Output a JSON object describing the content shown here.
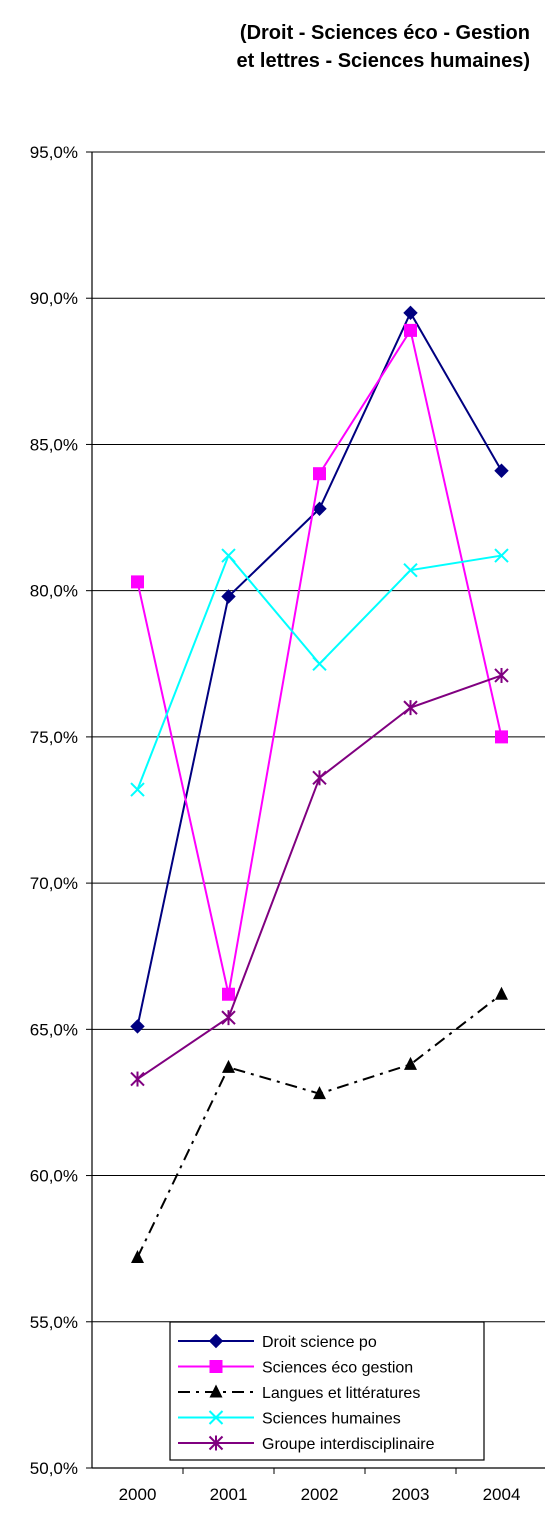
{
  "title_lines": [
    "(Droit - Sciences éco - Gestion",
    "et lettres - Sciences humaines)"
  ],
  "chart_data": {
    "type": "line",
    "categories": [
      "2000",
      "2001",
      "2002",
      "2003",
      "2004"
    ],
    "ylim": [
      0.5,
      0.95
    ],
    "ytick_values": [
      0.5,
      0.55,
      0.6,
      0.65,
      0.7,
      0.75,
      0.8,
      0.85,
      0.9,
      0.95
    ],
    "ytick_labels": [
      "50,0%",
      "55,0%",
      "60,0%",
      "65,0%",
      "70,0%",
      "75,0%",
      "80,0%",
      "85,0%",
      "90,0%",
      "95,0%"
    ],
    "grid": "horizontal",
    "legend_position": "bottom-center (inside plot)",
    "series": [
      {
        "name": "Droit science po",
        "color": "#000080",
        "marker": "diamond",
        "dash": "solid",
        "values": [
          0.651,
          0.798,
          0.828,
          0.895,
          0.841
        ]
      },
      {
        "name": "Sciences éco gestion",
        "color": "#FF00FF",
        "marker": "square",
        "dash": "solid",
        "values": [
          0.803,
          0.662,
          0.84,
          0.889,
          0.75
        ]
      },
      {
        "name": "Langues et littératures",
        "color": "#000000",
        "marker": "triangle",
        "dash": "dashdot",
        "values": [
          0.572,
          0.637,
          0.628,
          0.638,
          0.662
        ]
      },
      {
        "name": "Sciences humaines",
        "color": "#00FFFF",
        "marker": "x",
        "dash": "solid",
        "values": [
          0.732,
          0.812,
          0.775,
          0.807,
          0.812
        ]
      },
      {
        "name": "Groupe interdisciplinaire",
        "color": "#800080",
        "marker": "star",
        "dash": "solid",
        "values": [
          0.633,
          0.654,
          0.736,
          0.76,
          0.771
        ]
      }
    ]
  }
}
